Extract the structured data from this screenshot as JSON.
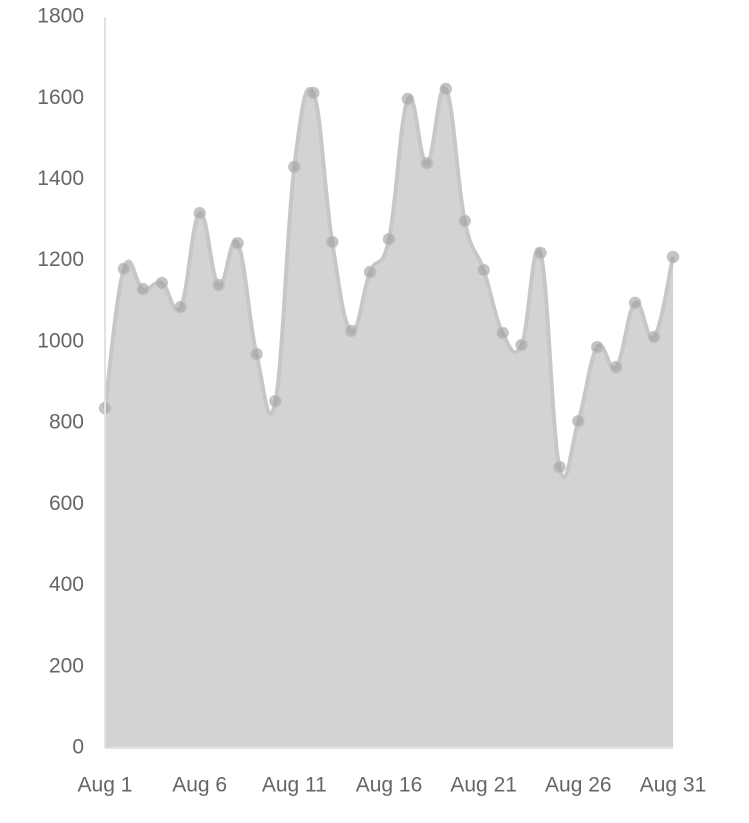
{
  "chart_data": {
    "type": "area",
    "categories": [
      "Aug 1",
      null,
      null,
      null,
      null,
      "Aug 6",
      null,
      null,
      null,
      null,
      "Aug 11",
      null,
      null,
      null,
      null,
      "Aug 16",
      null,
      null,
      null,
      null,
      "Aug 21",
      null,
      null,
      null,
      null,
      "Aug 26",
      null,
      null,
      null,
      null,
      "Aug 31"
    ],
    "values": [
      837,
      1180,
      1130,
      1145,
      1086,
      1317,
      1140,
      1243,
      970,
      854,
      1431,
      1613,
      1246,
      1027,
      1172,
      1253,
      1598,
      1440,
      1623,
      1298,
      1177,
      1022,
      992,
      1219,
      692,
      805,
      987,
      938,
      1096,
      1012,
      1209
    ],
    "color": "#d4d2d3",
    "ylim": [
      0,
      1800
    ],
    "yticks": [
      0,
      200,
      400,
      600,
      800,
      1000,
      1200,
      1400,
      1600,
      1800
    ],
    "grid": false
  }
}
